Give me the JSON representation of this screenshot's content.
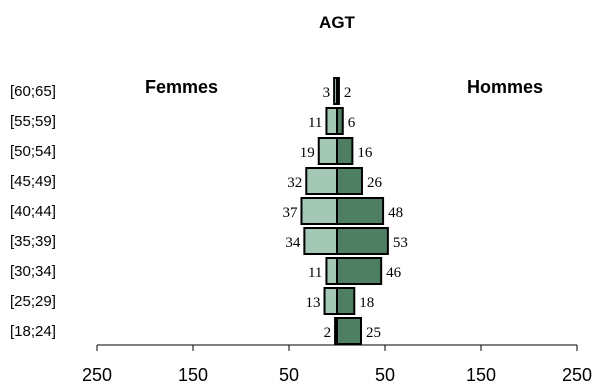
{
  "chart_data": {
    "type": "bar",
    "orientation": "horizontal-pyramid",
    "title": "AGT",
    "categories": [
      "[60;65]",
      "[55;59]",
      "[50;54]",
      "[45;49]",
      "[40;44]",
      "[35;39]",
      "[30;34]",
      "[25;29]",
      "[18;24]"
    ],
    "series": [
      {
        "name": "Femmes",
        "side": "left",
        "color": "#a3c9b6",
        "values": [
          3,
          11,
          19,
          32,
          37,
          34,
          11,
          13,
          2
        ]
      },
      {
        "name": "Hommes",
        "side": "right",
        "color": "#4f7f63",
        "values": [
          2,
          6,
          16,
          26,
          48,
          53,
          46,
          18,
          25
        ]
      }
    ],
    "x_tick_labels": [
      "250",
      "150",
      "50",
      "50",
      "150",
      "250"
    ],
    "x_tick_values": [
      -250,
      -150,
      -50,
      50,
      150,
      250
    ],
    "xlim": [
      -250,
      250
    ],
    "grid": false,
    "data_labels": true,
    "legend": "side labels top-left and top-right"
  }
}
